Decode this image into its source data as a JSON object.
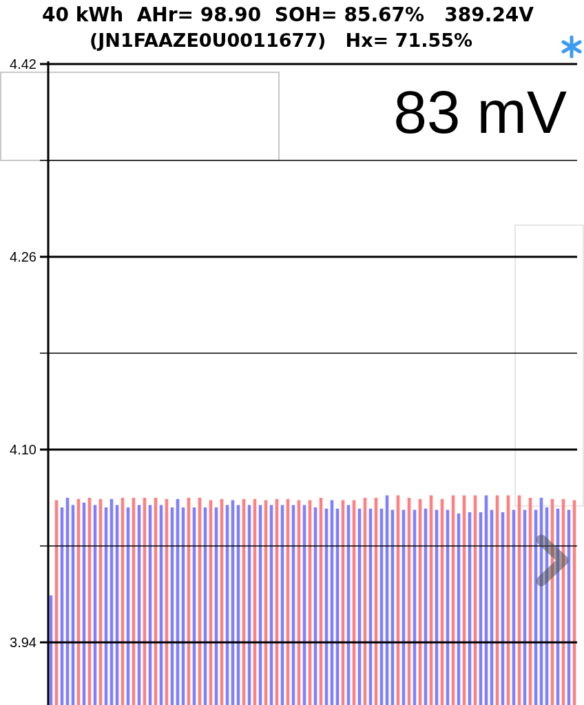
{
  "chart_data": {
    "type": "bar",
    "title": "40 kWh  AHr= 98.90  SOH= 85.67%   389.24V",
    "subtitle": "(JN1FAAZE0U0011677)   Hx= 71.55%",
    "categories": [
      null,
      null,
      null,
      null,
      null,
      null,
      null,
      null,
      null,
      null,
      null,
      null,
      null,
      null,
      null,
      null,
      null,
      null,
      null,
      null,
      null,
      null,
      null,
      null,
      null,
      null,
      null,
      null,
      null,
      null,
      null,
      null,
      null,
      null,
      null,
      null,
      null,
      null,
      null,
      null,
      null,
      null,
      null,
      null,
      null,
      null,
      null,
      null,
      null,
      null,
      null,
      null,
      null,
      null,
      null,
      null,
      null,
      null,
      null,
      null,
      null,
      null,
      null,
      null,
      null,
      null,
      null,
      null,
      null,
      null,
      null,
      null,
      null,
      null,
      null,
      null,
      null,
      null,
      null,
      null,
      null,
      null,
      null,
      null,
      null,
      null,
      null,
      null,
      null,
      null,
      null,
      null,
      null,
      null,
      null,
      null
    ],
    "values": [
      3.979,
      4.058,
      4.052,
      4.06,
      4.054,
      4.059,
      4.056,
      4.06,
      4.054,
      4.059,
      4.052,
      4.059,
      4.054,
      4.06,
      4.052,
      4.06,
      4.054,
      4.06,
      4.054,
      4.06,
      4.054,
      4.059,
      4.052,
      4.059,
      4.052,
      4.06,
      4.052,
      4.06,
      4.052,
      4.058,
      4.052,
      4.059,
      4.054,
      4.058,
      4.054,
      4.059,
      4.054,
      4.059,
      4.054,
      4.058,
      4.054,
      4.059,
      4.054,
      4.059,
      4.054,
      4.058,
      4.054,
      4.058,
      4.052,
      4.06,
      4.051,
      4.058,
      4.051,
      4.058,
      4.054,
      4.058,
      4.051,
      4.06,
      4.051,
      4.06,
      4.051,
      4.062,
      4.05,
      4.062,
      4.05,
      4.06,
      4.05,
      4.059,
      4.051,
      4.062,
      4.05,
      4.059,
      4.05,
      4.062,
      4.047,
      4.062,
      4.048,
      4.062,
      4.048,
      4.062,
      4.05,
      4.062,
      4.048,
      4.062,
      4.05,
      4.062,
      4.05,
      4.06,
      4.05,
      4.06,
      4.052,
      4.059,
      4.051,
      4.059,
      4.05,
      4.058
    ],
    "colors": [
      "#8080ff",
      "#ff8080",
      "#8080ff",
      "#8080ff",
      "#8080ff",
      "#ff8080",
      "#8080ff",
      "#ff8080",
      "#8080ff",
      "#ff8080",
      "#8080ff",
      "#8080ff",
      "#8080ff",
      "#ff8080",
      "#8080ff",
      "#ff8080",
      "#8080ff",
      "#ff8080",
      "#8080ff",
      "#ff8080",
      "#8080ff",
      "#ff8080",
      "#8080ff",
      "#8080ff",
      "#8080ff",
      "#ff8080",
      "#8080ff",
      "#ff8080",
      "#8080ff",
      "#ff8080",
      "#8080ff",
      "#ff8080",
      "#8080ff",
      "#8080ff",
      "#8080ff",
      "#ff8080",
      "#8080ff",
      "#ff8080",
      "#8080ff",
      "#ff8080",
      "#8080ff",
      "#ff8080",
      "#8080ff",
      "#ff8080",
      "#8080ff",
      "#ff8080",
      "#8080ff",
      "#ff8080",
      "#8080ff",
      "#ff8080",
      "#8080ff",
      "#8080ff",
      "#8080ff",
      "#ff8080",
      "#8080ff",
      "#ff8080",
      "#8080ff",
      "#ff8080",
      "#8080ff",
      "#ff8080",
      "#8080ff",
      "#8080ff",
      "#8080ff",
      "#ff8080",
      "#8080ff",
      "#ff8080",
      "#8080ff",
      "#ff8080",
      "#8080ff",
      "#ff8080",
      "#8080ff",
      "#ff8080",
      "#8080ff",
      "#ff8080",
      "#8080ff",
      "#ff8080",
      "#8080ff",
      "#ff8080",
      "#8080ff",
      "#8080ff",
      "#8080ff",
      "#ff8080",
      "#8080ff",
      "#ff8080",
      "#8080ff",
      "#ff8080",
      "#8080ff",
      "#ff8080",
      "#8080ff",
      "#8080ff",
      "#8080ff",
      "#ff8080",
      "#8080ff",
      "#ff8080",
      "#8080ff",
      "#ff8080"
    ],
    "ylim": [
      3.888,
      4.42
    ],
    "yticks": [
      4.42,
      {
        "value": 4.34,
        "label": null
      },
      4.26,
      {
        "value": 4.18,
        "label": null
      },
      {
        "value": 4.1,
        "label": "4.10"
      },
      {
        "value": 4.02,
        "label": null
      },
      3.94
    ],
    "grid": true,
    "tick_labels": "y",
    "annotations": [
      "83 mV"
    ]
  }
}
